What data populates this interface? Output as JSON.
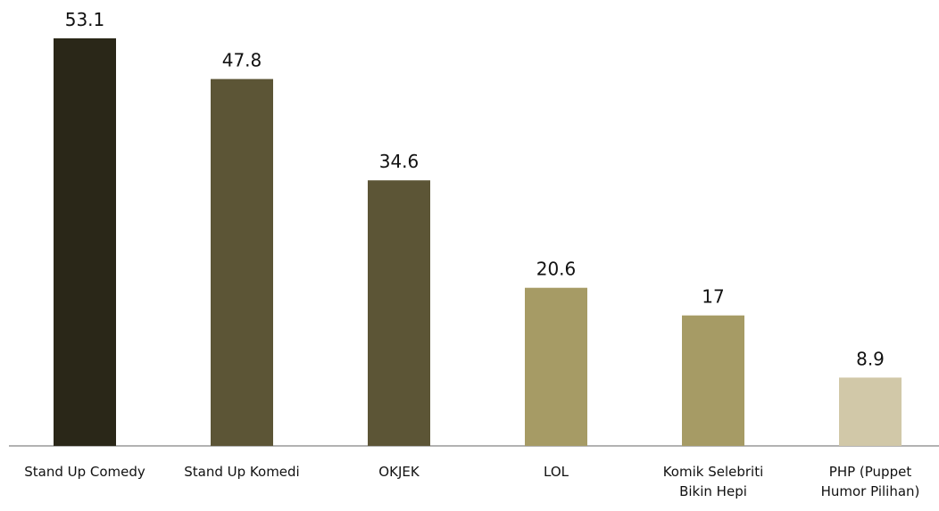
{
  "chart_data": {
    "type": "bar",
    "categories": [
      "Stand Up Comedy",
      "Stand Up Komedi",
      "OKJEK",
      "LOL",
      "Komik Selebriti\nBikin Hepi",
      "PHP (Puppet\nHumor Pilihan)"
    ],
    "values": [
      53.1,
      47.8,
      34.6,
      20.6,
      17,
      8.9
    ],
    "colors": [
      "#2a2718",
      "#5c5536",
      "#5c5536",
      "#a69b65",
      "#a69b65",
      "#d1c8a8"
    ]
  }
}
